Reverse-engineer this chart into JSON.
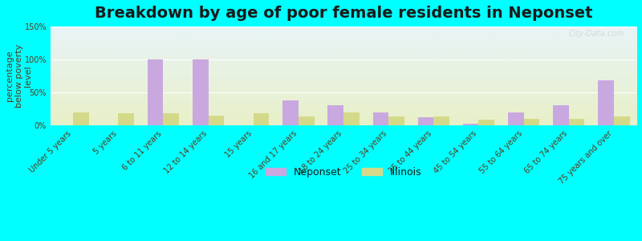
{
  "title": "Breakdown by age of poor female residents in Neponset",
  "ylabel": "percentage\nbelow poverty\nlevel",
  "categories": [
    "Under 5 years",
    "5 years",
    "6 to 11 years",
    "12 to 14 years",
    "15 years",
    "16 and 17 years",
    "18 to 24 years",
    "25 to 34 years",
    "35 to 44 years",
    "45 to 54 years",
    "55 to 64 years",
    "65 to 74 years",
    "75 years and over"
  ],
  "neponset": [
    0,
    0,
    100,
    100,
    0,
    38,
    30,
    20,
    12,
    3,
    20,
    30,
    68
  ],
  "illinois": [
    20,
    18,
    18,
    15,
    18,
    14,
    20,
    14,
    13,
    9,
    10,
    10,
    13
  ],
  "neponset_color": "#c9a8e0",
  "illinois_color": "#d4d98a",
  "bg_top_color": "#e8f4f8",
  "bg_bottom_color": "#e8f0c8",
  "outer_bg_color": "#00ffff",
  "ylim": [
    0,
    150
  ],
  "ytick_labels": [
    "0%",
    "50%",
    "100%",
    "150%"
  ],
  "watermark": "City-Data.com",
  "title_fontsize": 14,
  "axis_label_fontsize": 8,
  "tick_label_fontsize": 7,
  "legend_fontsize": 9
}
